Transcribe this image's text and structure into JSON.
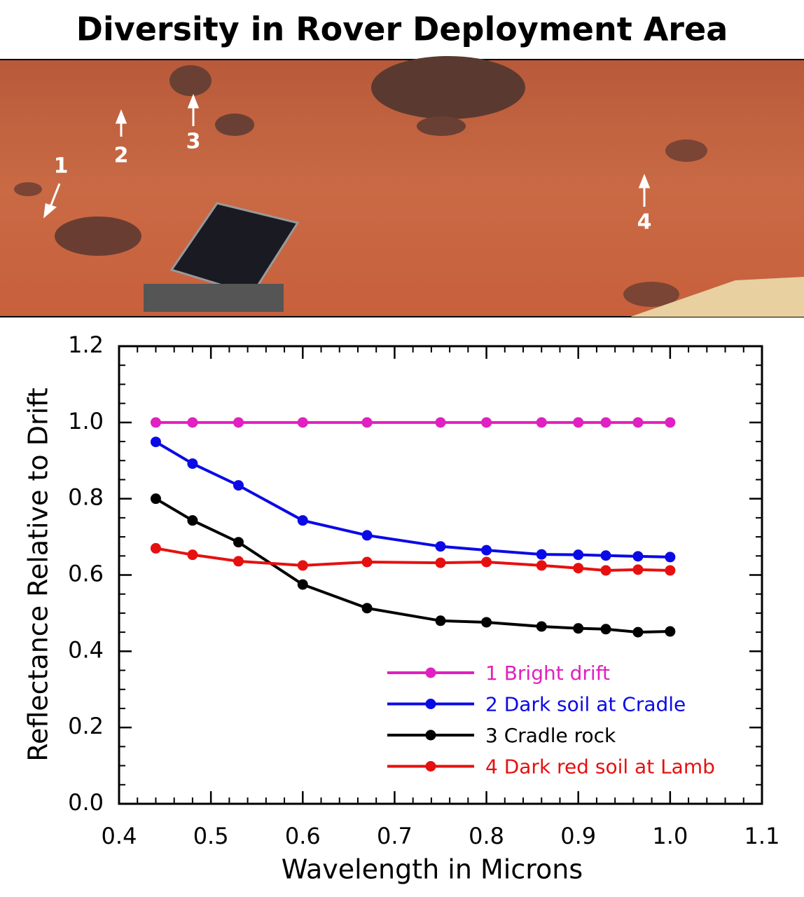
{
  "chart_data": {
    "type": "line",
    "title": "Diversity in Rover Deployment Area",
    "photo_labels": [
      "1",
      "2",
      "3",
      "4"
    ],
    "x_label": "Wavelength in Microns",
    "y_label": "Reflectance Relative to Drift",
    "x": [
      0.44,
      0.48,
      0.53,
      0.6,
      0.67,
      0.75,
      0.8,
      0.86,
      0.9,
      0.93,
      0.965,
      1.0
    ],
    "series": [
      {
        "name": "1 Bright drift",
        "color": "#e020c0",
        "values": [
          1,
          1,
          1,
          1,
          1,
          1,
          1,
          1,
          1,
          1,
          1,
          1
        ]
      },
      {
        "name": "2 Dark soil at Cradle",
        "color": "#0a0ae6",
        "values": [
          0.949,
          0.892,
          0.835,
          0.743,
          0.704,
          0.675,
          0.665,
          0.654,
          0.653,
          0.651,
          0.649,
          0.647
        ]
      },
      {
        "name": "3 Cradle rock",
        "color": "#000000",
        "values": [
          0.8,
          0.743,
          0.686,
          0.575,
          0.513,
          0.48,
          0.476,
          0.465,
          0.46,
          0.458,
          0.45,
          0.452
        ]
      },
      {
        "name": "4 Dark red soil at Lamb",
        "color": "#e61010",
        "values": [
          0.67,
          0.653,
          0.636,
          0.625,
          0.634,
          0.632,
          0.634,
          0.625,
          0.618,
          0.612,
          0.614,
          0.612
        ]
      }
    ],
    "xlim": [
      0.4,
      1.1
    ],
    "ylim": [
      0,
      1.2
    ],
    "xticks": [
      0.4,
      0.5,
      0.6,
      0.7,
      0.8,
      0.9,
      {
        "value": 1,
        "label": "1.0"
      },
      1.1
    ],
    "yticks": [
      {
        "value": 0,
        "label": "0.0"
      },
      0.2,
      0.4,
      0.6,
      0.8,
      {
        "value": 1,
        "label": "1.0"
      },
      1.2
    ],
    "legend": "lower right"
  }
}
